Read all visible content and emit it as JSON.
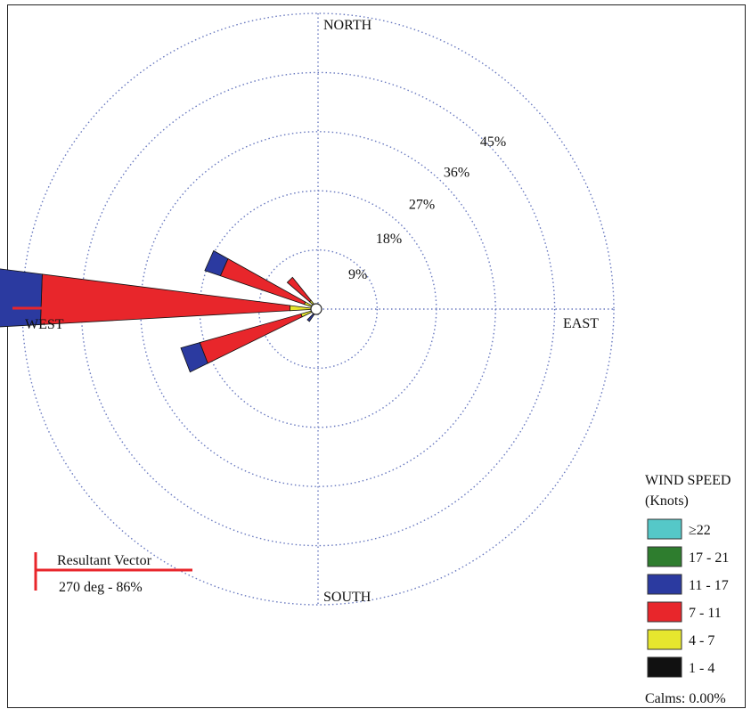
{
  "chart_data": {
    "type": "wind-rose",
    "units": "%",
    "rings": [
      {
        "value": 9,
        "label": "9%"
      },
      {
        "value": 18,
        "label": "18%"
      },
      {
        "value": 27,
        "label": "27%"
      },
      {
        "value": 36,
        "label": "36%"
      },
      {
        "value": 45,
        "label": "45%"
      }
    ],
    "directions": {
      "north": "NORTH",
      "east": "EAST",
      "south": "SOUTH",
      "west": "WEST"
    },
    "legend": {
      "title_line1": "WIND SPEED",
      "title_line2": "(Knots)",
      "items": [
        {
          "label": "≥22",
          "color": "#55c8c8"
        },
        {
          "label": "17 - 21",
          "color": "#2e7d2e"
        },
        {
          "label": "11 - 17",
          "color": "#2b3aa0"
        },
        {
          "label": "7 - 11",
          "color": "#e8262b"
        },
        {
          "label": "4 - 7",
          "color": "#e6e62e"
        },
        {
          "label": "1 - 4",
          "color": "#111111"
        }
      ],
      "calms": "Calms: 0.00%"
    },
    "resultant": {
      "title": "Resultant Vector",
      "value": "270 deg - 86%",
      "direction_deg": 270,
      "percent": 86,
      "color": "#e8262b"
    },
    "petals": [
      {
        "direction_deg": 272,
        "bins": {
          "1 - 4": 0.3,
          "4 - 7": 4.0,
          "7 - 11": 38.0,
          "11 - 17": 9.5
        }
      },
      {
        "direction_deg": 294,
        "bins": {
          "1 - 4": 0.2,
          "4 - 7": 2.0,
          "7 - 11": 13.5,
          "11 - 17": 2.5
        }
      },
      {
        "direction_deg": 249,
        "bins": {
          "1 - 4": 0.2,
          "4 - 7": 2.5,
          "7 - 11": 16.0,
          "11 - 17": 3.0
        }
      },
      {
        "direction_deg": 316,
        "bins": {
          "1 - 4": 0.2,
          "4 - 7": 1.5,
          "7 - 11": 4.5
        }
      },
      {
        "direction_deg": 220,
        "bins": {
          "1 - 4": 0.3,
          "4 - 7": 0.6,
          "11 - 17": 1.4
        }
      }
    ]
  }
}
